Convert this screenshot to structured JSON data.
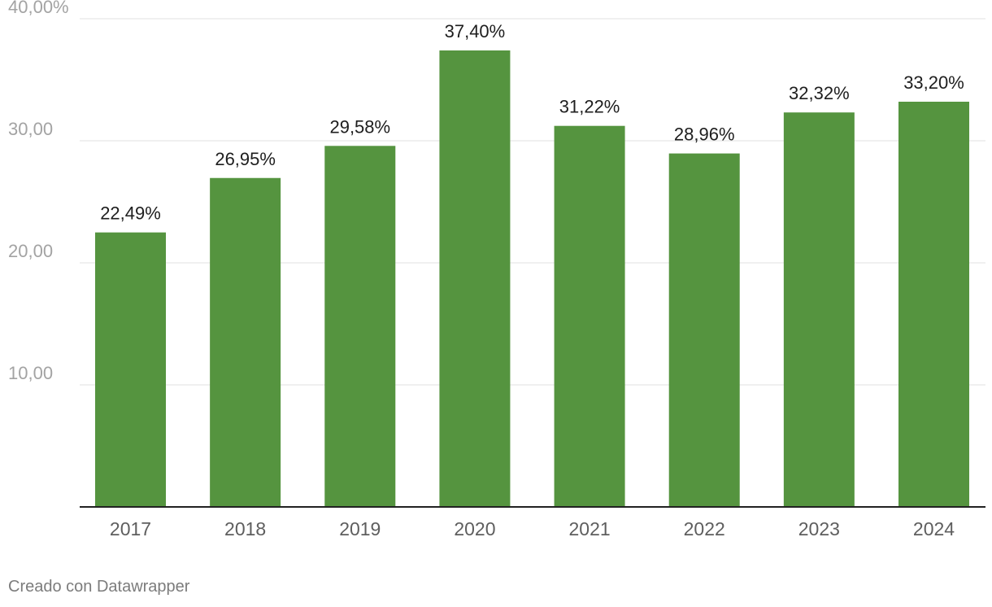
{
  "chart_data": {
    "type": "bar",
    "categories": [
      "2017",
      "2018",
      "2019",
      "2020",
      "2021",
      "2022",
      "2023",
      "2024"
    ],
    "values": [
      22.49,
      26.95,
      29.58,
      37.4,
      31.22,
      28.96,
      32.32,
      33.2
    ],
    "data_labels": [
      "22,49%",
      "26,95%",
      "29,58%",
      "37,40%",
      "31,22%",
      "28,96%",
      "32,32%",
      "33,20%"
    ],
    "y_ticks": [
      {
        "value": 10,
        "label": "10,00"
      },
      {
        "value": 20,
        "label": "20,00"
      },
      {
        "value": 30,
        "label": "30,00"
      },
      {
        "value": 40,
        "label": "40,00%"
      }
    ],
    "ylim": [
      0,
      40
    ],
    "grid": true,
    "legend": "none",
    "bar_color": "#55943f",
    "title": "",
    "xlabel": "",
    "ylabel": ""
  },
  "footer": {
    "credit": "Creado con Datawrapper"
  }
}
